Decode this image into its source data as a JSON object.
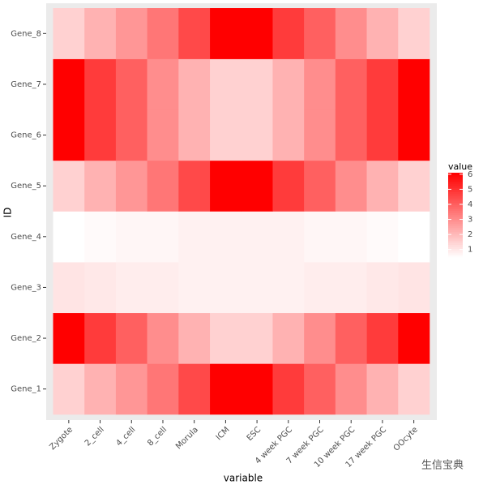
{
  "chart_data": {
    "type": "heatmap",
    "x_label": "variable",
    "y_label": "ID",
    "legend_title": "value",
    "x_categories": [
      "Zygote",
      "2_cell",
      "4_cell",
      "8_cell",
      "Morula",
      "ICM",
      "ESC",
      "4 week PGC",
      "7 week PGC",
      "10 week PGC",
      "17 week PGC",
      "OOcyte"
    ],
    "y_categories": [
      "Gene_1",
      "Gene_2",
      "Gene_3",
      "Gene_4",
      "Gene_5",
      "Gene_6",
      "Gene_7",
      "Gene_8"
    ],
    "z": [
      [
        1.5,
        2.2,
        2.8,
        3.5,
        4.5,
        6.1,
        6.1,
        4.8,
        4.0,
        3.0,
        2.2,
        1.5
      ],
      [
        6.1,
        4.8,
        4.0,
        3.0,
        2.2,
        1.5,
        1.5,
        2.2,
        3.0,
        4.0,
        4.8,
        6.1
      ],
      [
        1.1,
        1.0,
        0.9,
        0.9,
        0.8,
        0.8,
        0.8,
        0.8,
        0.9,
        0.9,
        1.0,
        1.1
      ],
      [
        0.5,
        0.6,
        0.7,
        0.7,
        0.8,
        0.8,
        0.8,
        0.8,
        0.7,
        0.7,
        0.6,
        0.5
      ],
      [
        1.5,
        2.2,
        2.8,
        3.5,
        4.5,
        6.1,
        6.1,
        4.8,
        4.0,
        3.0,
        2.2,
        1.5
      ],
      [
        6.1,
        4.8,
        4.0,
        3.0,
        2.2,
        1.5,
        1.5,
        2.2,
        3.0,
        4.0,
        4.8,
        6.1
      ],
      [
        6.1,
        4.8,
        4.0,
        3.0,
        2.2,
        1.5,
        1.5,
        2.2,
        3.0,
        4.0,
        4.8,
        6.1
      ],
      [
        1.5,
        2.2,
        2.8,
        3.5,
        4.5,
        6.1,
        6.1,
        4.8,
        4.0,
        3.0,
        2.2,
        1.5
      ]
    ],
    "low_color": "#ffffff",
    "high_color": "#ff0000",
    "colorbar_ticks": [
      1,
      2,
      3,
      4,
      5,
      6
    ]
  },
  "watermark": "生信宝典"
}
